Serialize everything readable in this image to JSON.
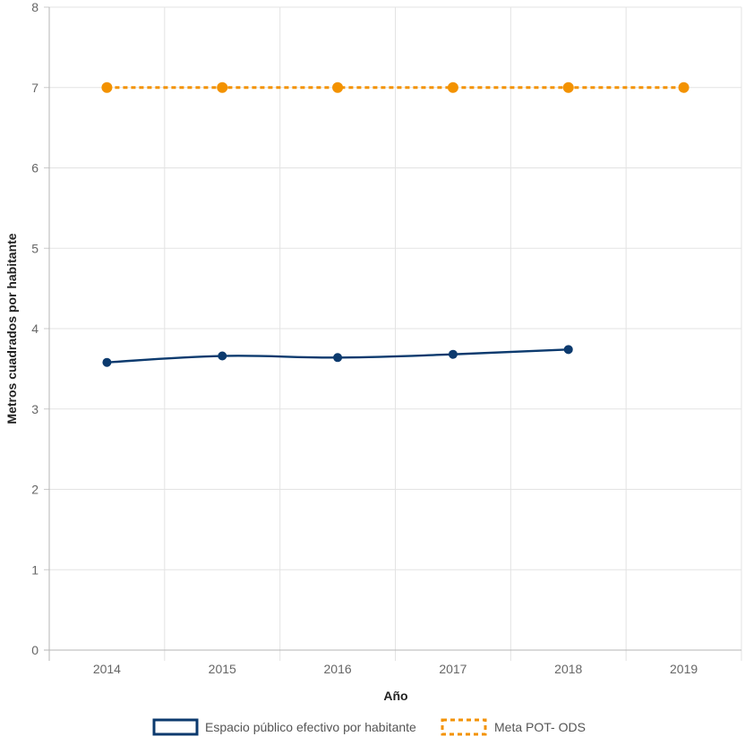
{
  "chart_data": {
    "type": "line",
    "categories": [
      "2014",
      "2015",
      "2016",
      "2017",
      "2018",
      "2019"
    ],
    "xlabel": "Año",
    "ylabel": "Metros cuadrados por habitante",
    "ylim": [
      0,
      8
    ],
    "yticks": [
      "0",
      "1",
      "2",
      "3",
      "4",
      "5",
      "6",
      "7",
      "8"
    ],
    "grid": true,
    "legend_position": "bottom",
    "series": [
      {
        "name": "Espacio público efectivo por habitante",
        "values": [
          3.58,
          3.66,
          3.64,
          3.68,
          3.74,
          null
        ],
        "color": "#0c3a6e",
        "style": "solid"
      },
      {
        "name": "Meta POT- ODS",
        "values": [
          7,
          7,
          7,
          7,
          7,
          7
        ],
        "color": "#f39200",
        "style": "dotted"
      }
    ]
  }
}
